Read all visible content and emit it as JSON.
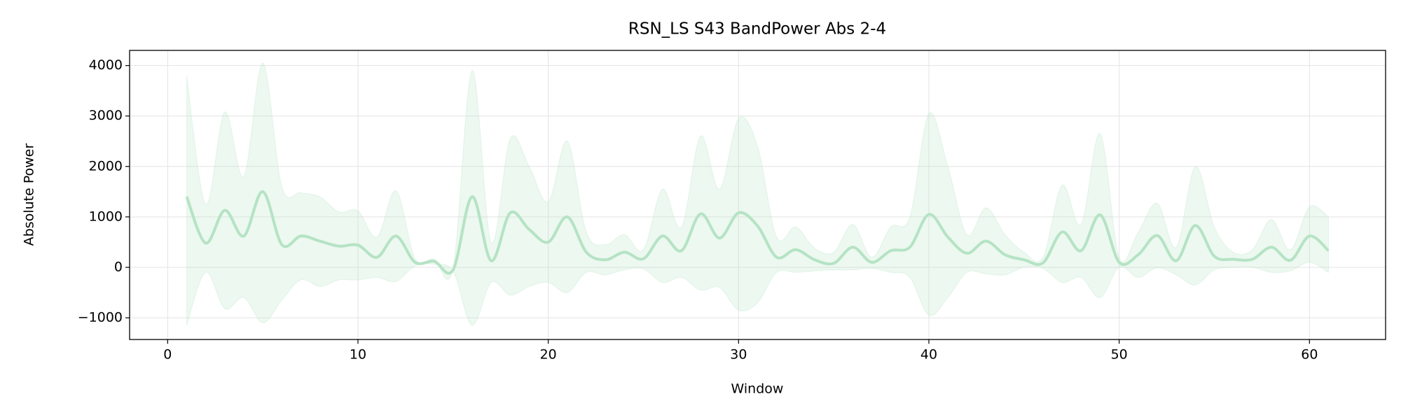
{
  "chart_data": {
    "type": "line",
    "title": "RSN_LS S43 BandPower Abs 2-4",
    "x_label": "Window",
    "y_label": "Absolute Power",
    "x": [
      1,
      2,
      3,
      4,
      5,
      6,
      7,
      8,
      9,
      10,
      11,
      12,
      13,
      14,
      15,
      16,
      17,
      18,
      19,
      20,
      21,
      22,
      23,
      24,
      25,
      26,
      27,
      28,
      29,
      30,
      31,
      32,
      33,
      34,
      35,
      36,
      37,
      38,
      39,
      40,
      41,
      42,
      43,
      44,
      45,
      46,
      47,
      48,
      49,
      50,
      51,
      52,
      53,
      54,
      55,
      56,
      57,
      58,
      59,
      60,
      61
    ],
    "series": [
      {
        "color": "#b5e3c4",
        "values": [
          1400,
          480,
          1130,
          620,
          1500,
          450,
          620,
          520,
          420,
          440,
          200,
          620,
          100,
          120,
          -50,
          1400,
          130,
          1080,
          750,
          500,
          1000,
          300,
          150,
          300,
          170,
          620,
          330,
          1060,
          580,
          1080,
          820,
          200,
          350,
          150,
          80,
          400,
          100,
          330,
          400,
          1050,
          600,
          280,
          520,
          250,
          150,
          90,
          700,
          330,
          1040,
          100,
          250,
          630,
          130,
          830,
          220,
          160,
          160,
          400,
          140,
          620,
          330
        ]
      }
    ],
    "band": {
      "color": "#b5e3c4",
      "upper": [
        3800,
        1250,
        3080,
        1800,
        4050,
        1600,
        1480,
        1400,
        1100,
        1120,
        600,
        1520,
        180,
        170,
        0,
        3900,
        500,
        2550,
        2000,
        1300,
        2500,
        700,
        450,
        650,
        350,
        1550,
        800,
        2600,
        1550,
        2950,
        2400,
        600,
        800,
        380,
        300,
        850,
        200,
        800,
        1000,
        3050,
        2000,
        650,
        1180,
        650,
        300,
        200,
        1630,
        850,
        2650,
        200,
        700,
        1270,
        400,
        2000,
        800,
        300,
        350,
        950,
        350,
        1200,
        1000
      ],
      "lower": [
        -1150,
        -100,
        -820,
        -600,
        -1100,
        -650,
        -250,
        -380,
        -250,
        -250,
        -200,
        -280,
        30,
        60,
        -80,
        -1150,
        -300,
        -550,
        -380,
        -300,
        -500,
        -100,
        -150,
        -50,
        -30,
        -300,
        -200,
        -450,
        -400,
        -850,
        -700,
        -100,
        -100,
        -70,
        -50,
        -50,
        -20,
        -100,
        -200,
        -950,
        -600,
        -100,
        -130,
        -150,
        0,
        -20,
        -300,
        -200,
        -600,
        0,
        -200,
        -10,
        -150,
        -350,
        -50,
        0,
        0,
        -100,
        -70,
        100,
        -100
      ]
    },
    "xlim": [
      -2,
      64
    ],
    "ylim": [
      -1430,
      4300
    ],
    "xticks": [
      0,
      10,
      20,
      30,
      40,
      50,
      60
    ],
    "yticks": [
      {
        "value": -1000,
        "label": "−1000"
      },
      0,
      1000,
      2000,
      3000,
      4000
    ],
    "grid": true
  }
}
